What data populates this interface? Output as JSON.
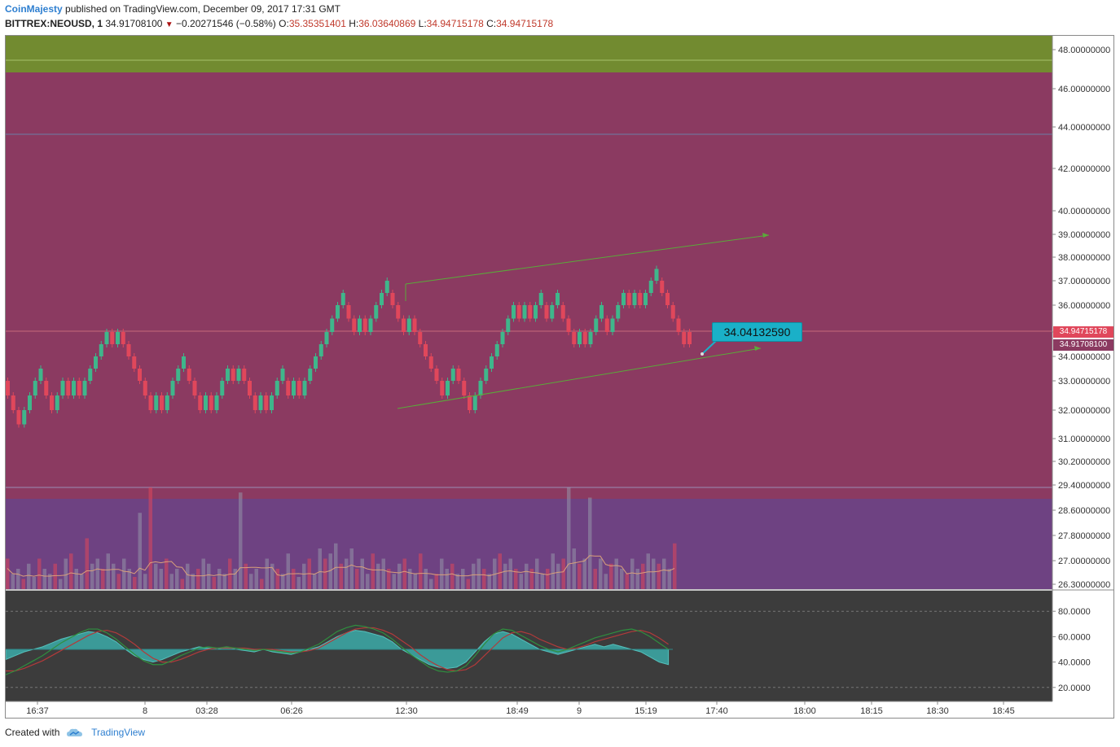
{
  "header": {
    "author": "CoinMajesty",
    "published": "published on TradingView.com, December 09, 2017 17:31 GMT",
    "symbol": "BITTREX:NEOUSD, 1",
    "last": "34.91708100",
    "change": "−0.20271546 (−0.58%)",
    "o_label": "O:",
    "o_value": "35.35351401",
    "h_label": "H:",
    "h_value": "36.03640869",
    "l_label": "L:",
    "l_value": "34.94715178",
    "c_label": "C:",
    "c_value": "34.94715178"
  },
  "footer": {
    "created_with": "Created with",
    "brand": "TradingView"
  },
  "annotation": {
    "label": "34.04132590"
  },
  "price_boxes": {
    "last_close": "34.94715178",
    "last_trade": "34.91708100"
  },
  "colors": {
    "up": "#3fb68b",
    "down": "#e0475b",
    "zone_top": "#728b30",
    "zone_mid": "#8b3a61",
    "zone_low": "#6e4282",
    "indicator_bg": "#3c3c3c",
    "trend_line": "#5aaa3a",
    "annotation": "#1ab0c8"
  },
  "chart_data": {
    "type": "line",
    "subtype": "renko-like price chart with volume and oscillator panes",
    "price_axis_ticks": [
      "48.00000000",
      "46.00000000",
      "44.00000000",
      "42.00000000",
      "40.00000000",
      "39.00000000",
      "38.00000000",
      "37.00000000",
      "36.00000000",
      "35.00000000",
      "34.00000000",
      "33.00000000",
      "32.00000000",
      "31.00000000",
      "30.20000000",
      "29.40000000",
      "28.60000000",
      "27.80000000",
      "27.00000000",
      "26.30000000"
    ],
    "oscillator_axis_ticks": [
      "80.0000",
      "60.0000",
      "40.0000",
      "20.0000"
    ],
    "time_axis_ticks": [
      "16:37",
      "8",
      "03:28",
      "06:26",
      "12:30",
      "18:49",
      "9",
      "15:19",
      "17:40",
      "18:00",
      "18:15",
      "18:30",
      "18:45"
    ],
    "bricks": [
      {
        "dir": "down",
        "bottom": 32.5
      },
      {
        "dir": "down",
        "bottom": 32.0
      },
      {
        "dir": "down",
        "bottom": 31.5
      },
      {
        "dir": "up",
        "bottom": 31.5
      },
      {
        "dir": "up",
        "bottom": 32.0
      },
      {
        "dir": "up",
        "bottom": 32.5
      },
      {
        "dir": "up",
        "bottom": 33.0
      },
      {
        "dir": "down",
        "bottom": 32.5
      },
      {
        "dir": "down",
        "bottom": 32.0
      },
      {
        "dir": "up",
        "bottom": 32.0
      },
      {
        "dir": "up",
        "bottom": 32.5
      },
      {
        "dir": "down",
        "bottom": 32.5
      },
      {
        "dir": "up",
        "bottom": 32.5
      },
      {
        "dir": "down",
        "bottom": 32.5
      },
      {
        "dir": "up",
        "bottom": 32.5
      },
      {
        "dir": "up",
        "bottom": 33.0
      },
      {
        "dir": "up",
        "bottom": 33.5
      },
      {
        "dir": "up",
        "bottom": 34.0
      },
      {
        "dir": "up",
        "bottom": 34.5
      },
      {
        "dir": "down",
        "bottom": 34.5
      },
      {
        "dir": "up",
        "bottom": 34.5
      },
      {
        "dir": "down",
        "bottom": 34.5
      },
      {
        "dir": "down",
        "bottom": 34.0
      },
      {
        "dir": "down",
        "bottom": 33.5
      },
      {
        "dir": "down",
        "bottom": 33.0
      },
      {
        "dir": "down",
        "bottom": 32.5
      },
      {
        "dir": "down",
        "bottom": 32.0
      },
      {
        "dir": "up",
        "bottom": 32.0
      },
      {
        "dir": "down",
        "bottom": 32.0
      },
      {
        "dir": "up",
        "bottom": 32.0
      },
      {
        "dir": "up",
        "bottom": 32.5
      },
      {
        "dir": "up",
        "bottom": 33.0
      },
      {
        "dir": "up",
        "bottom": 33.5
      },
      {
        "dir": "down",
        "bottom": 33.0
      },
      {
        "dir": "down",
        "bottom": 32.5
      },
      {
        "dir": "down",
        "bottom": 32.0
      },
      {
        "dir": "up",
        "bottom": 32.0
      },
      {
        "dir": "down",
        "bottom": 32.0
      },
      {
        "dir": "up",
        "bottom": 32.0
      },
      {
        "dir": "up",
        "bottom": 32.5
      },
      {
        "dir": "up",
        "bottom": 33.0
      },
      {
        "dir": "down",
        "bottom": 33.0
      },
      {
        "dir": "up",
        "bottom": 33.0
      },
      {
        "dir": "down",
        "bottom": 33.0
      },
      {
        "dir": "down",
        "bottom": 32.5
      },
      {
        "dir": "down",
        "bottom": 32.0
      },
      {
        "dir": "up",
        "bottom": 32.0
      },
      {
        "dir": "down",
        "bottom": 32.0
      },
      {
        "dir": "up",
        "bottom": 32.0
      },
      {
        "dir": "up",
        "bottom": 32.5
      },
      {
        "dir": "up",
        "bottom": 33.0
      },
      {
        "dir": "down",
        "bottom": 32.5
      },
      {
        "dir": "up",
        "bottom": 32.5
      },
      {
        "dir": "down",
        "bottom": 32.5
      },
      {
        "dir": "up",
        "bottom": 32.5
      },
      {
        "dir": "up",
        "bottom": 33.0
      },
      {
        "dir": "up",
        "bottom": 33.5
      },
      {
        "dir": "up",
        "bottom": 34.0
      },
      {
        "dir": "up",
        "bottom": 34.5
      },
      {
        "dir": "up",
        "bottom": 35.0
      },
      {
        "dir": "up",
        "bottom": 35.5
      },
      {
        "dir": "up",
        "bottom": 36.0
      },
      {
        "dir": "down",
        "bottom": 35.5
      },
      {
        "dir": "down",
        "bottom": 35.0
      },
      {
        "dir": "up",
        "bottom": 35.0
      },
      {
        "dir": "down",
        "bottom": 35.0
      },
      {
        "dir": "up",
        "bottom": 35.0
      },
      {
        "dir": "up",
        "bottom": 35.5
      },
      {
        "dir": "up",
        "bottom": 36.0
      },
      {
        "dir": "up",
        "bottom": 36.5
      },
      {
        "dir": "down",
        "bottom": 36.0
      },
      {
        "dir": "down",
        "bottom": 35.5
      },
      {
        "dir": "down",
        "bottom": 35.0
      },
      {
        "dir": "up",
        "bottom": 35.0
      },
      {
        "dir": "down",
        "bottom": 35.0
      },
      {
        "dir": "down",
        "bottom": 34.5
      },
      {
        "dir": "down",
        "bottom": 34.0
      },
      {
        "dir": "down",
        "bottom": 33.5
      },
      {
        "dir": "down",
        "bottom": 33.0
      },
      {
        "dir": "down",
        "bottom": 32.5
      },
      {
        "dir": "up",
        "bottom": 32.5
      },
      {
        "dir": "up",
        "bottom": 33.0
      },
      {
        "dir": "down",
        "bottom": 33.0
      },
      {
        "dir": "down",
        "bottom": 32.5
      },
      {
        "dir": "down",
        "bottom": 32.0
      },
      {
        "dir": "up",
        "bottom": 32.0
      },
      {
        "dir": "up",
        "bottom": 32.5
      },
      {
        "dir": "up",
        "bottom": 33.0
      },
      {
        "dir": "up",
        "bottom": 33.5
      },
      {
        "dir": "up",
        "bottom": 34.0
      },
      {
        "dir": "up",
        "bottom": 34.5
      },
      {
        "dir": "up",
        "bottom": 35.0
      },
      {
        "dir": "up",
        "bottom": 35.5
      },
      {
        "dir": "down",
        "bottom": 35.5
      },
      {
        "dir": "up",
        "bottom": 35.5
      },
      {
        "dir": "down",
        "bottom": 35.5
      },
      {
        "dir": "up",
        "bottom": 35.5
      },
      {
        "dir": "up",
        "bottom": 36.0
      },
      {
        "dir": "down",
        "bottom": 35.5
      },
      {
        "dir": "up",
        "bottom": 35.5
      },
      {
        "dir": "up",
        "bottom": 36.0
      },
      {
        "dir": "down",
        "bottom": 35.5
      },
      {
        "dir": "down",
        "bottom": 35.0
      },
      {
        "dir": "down",
        "bottom": 34.5
      },
      {
        "dir": "up",
        "bottom": 34.5
      },
      {
        "dir": "down",
        "bottom": 34.5
      },
      {
        "dir": "up",
        "bottom": 34.5
      },
      {
        "dir": "up",
        "bottom": 35.0
      },
      {
        "dir": "up",
        "bottom": 35.5
      },
      {
        "dir": "down",
        "bottom": 35.0
      },
      {
        "dir": "up",
        "bottom": 35.0
      },
      {
        "dir": "up",
        "bottom": 35.5
      },
      {
        "dir": "up",
        "bottom": 36.0
      },
      {
        "dir": "down",
        "bottom": 36.0
      },
      {
        "dir": "up",
        "bottom": 36.0
      },
      {
        "dir": "down",
        "bottom": 36.0
      },
      {
        "dir": "up",
        "bottom": 36.0
      },
      {
        "dir": "up",
        "bottom": 36.5
      },
      {
        "dir": "up",
        "bottom": 37.0
      },
      {
        "dir": "down",
        "bottom": 36.5
      },
      {
        "dir": "down",
        "bottom": 36.0
      },
      {
        "dir": "down",
        "bottom": 35.5
      },
      {
        "dir": "down",
        "bottom": 35.0
      },
      {
        "dir": "down",
        "bottom": 34.5
      },
      {
        "dir": "down",
        "bottom": 34.5
      }
    ],
    "volume_relative": [
      0.3,
      0.15,
      0.2,
      0.1,
      0.25,
      0.12,
      0.3,
      0.2,
      0.15,
      0.25,
      0.1,
      0.3,
      0.35,
      0.2,
      0.15,
      0.5,
      0.25,
      0.3,
      0.2,
      0.35,
      0.25,
      0.15,
      0.3,
      0.2,
      0.12,
      0.75,
      0.15,
      1.0,
      0.25,
      0.2,
      0.3,
      0.15,
      0.2,
      0.1,
      0.25,
      0.15,
      0.2,
      0.3,
      0.25,
      0.12,
      0.2,
      0.15,
      0.3,
      0.2,
      0.95,
      0.25,
      0.15,
      0.2,
      0.1,
      0.3,
      0.25,
      0.2,
      0.15,
      0.35,
      0.2,
      0.12,
      0.25,
      0.3,
      0.15,
      0.4,
      0.3,
      0.35,
      0.45,
      0.25,
      0.3,
      0.4,
      0.2,
      0.3,
      0.15,
      0.35,
      0.25,
      0.3,
      0.2,
      0.15,
      0.25,
      0.3,
      0.2,
      0.15,
      0.35,
      0.2,
      0.1,
      0.15,
      0.3,
      0.2,
      0.25,
      0.15,
      0.2,
      0.1,
      0.25,
      0.3,
      0.2,
      0.15,
      0.3,
      0.35,
      0.25,
      0.3,
      0.2,
      0.15,
      0.25,
      0.2,
      0.3,
      0.15,
      0.2,
      0.35,
      0.25,
      0.3,
      1.0,
      0.4,
      0.25,
      0.3,
      0.9,
      0.2,
      0.3,
      0.15,
      0.25,
      0.3,
      0.2,
      0.15,
      0.3,
      0.2,
      0.25,
      0.35,
      0.3,
      0.25,
      0.3,
      0.2,
      0.45
    ],
    "oscillator_hist": [
      42,
      45,
      48,
      50,
      52,
      55,
      58,
      60,
      62,
      64,
      63,
      60,
      56,
      50,
      45,
      42,
      40,
      42,
      45,
      48,
      50,
      52,
      51,
      50,
      52,
      50,
      49,
      48,
      50,
      48,
      47,
      46,
      48,
      50,
      52,
      56,
      60,
      63,
      65,
      64,
      62,
      60,
      56,
      50,
      46,
      42,
      38,
      36,
      35,
      36,
      40,
      48,
      56,
      62,
      64,
      62,
      58,
      54,
      50,
      48,
      46,
      48,
      50,
      52,
      54,
      52,
      54,
      52,
      50,
      48,
      44,
      40,
      38
    ],
    "oscillator_fast": [
      30,
      33,
      37,
      41,
      45,
      50,
      55,
      59,
      63,
      66,
      66,
      63,
      58,
      52,
      46,
      41,
      38,
      38,
      41,
      45,
      48,
      51,
      52,
      51,
      52,
      51,
      50,
      49,
      50,
      49,
      48,
      47,
      48,
      51,
      54,
      59,
      64,
      67,
      69,
      68,
      66,
      63,
      58,
      52,
      46,
      41,
      36,
      33,
      32,
      33,
      37,
      45,
      54,
      62,
      66,
      65,
      61,
      57,
      53,
      50,
      48,
      50,
      53,
      56,
      59,
      61,
      63,
      65,
      66,
      64,
      60,
      55,
      50
    ],
    "oscillator_slow": [
      33,
      33,
      35,
      38,
      41,
      45,
      49,
      53,
      57,
      61,
      64,
      65,
      63,
      59,
      54,
      48,
      43,
      40,
      40,
      42,
      45,
      48,
      50,
      51,
      51,
      51,
      51,
      50,
      50,
      50,
      49,
      48,
      48,
      49,
      51,
      55,
      59,
      63,
      66,
      67,
      67,
      65,
      62,
      57,
      52,
      46,
      41,
      37,
      34,
      33,
      34,
      38,
      45,
      52,
      59,
      63,
      64,
      62,
      58,
      55,
      52,
      50,
      51,
      53,
      56,
      58,
      60,
      62,
      64,
      65,
      63,
      59,
      54
    ]
  }
}
